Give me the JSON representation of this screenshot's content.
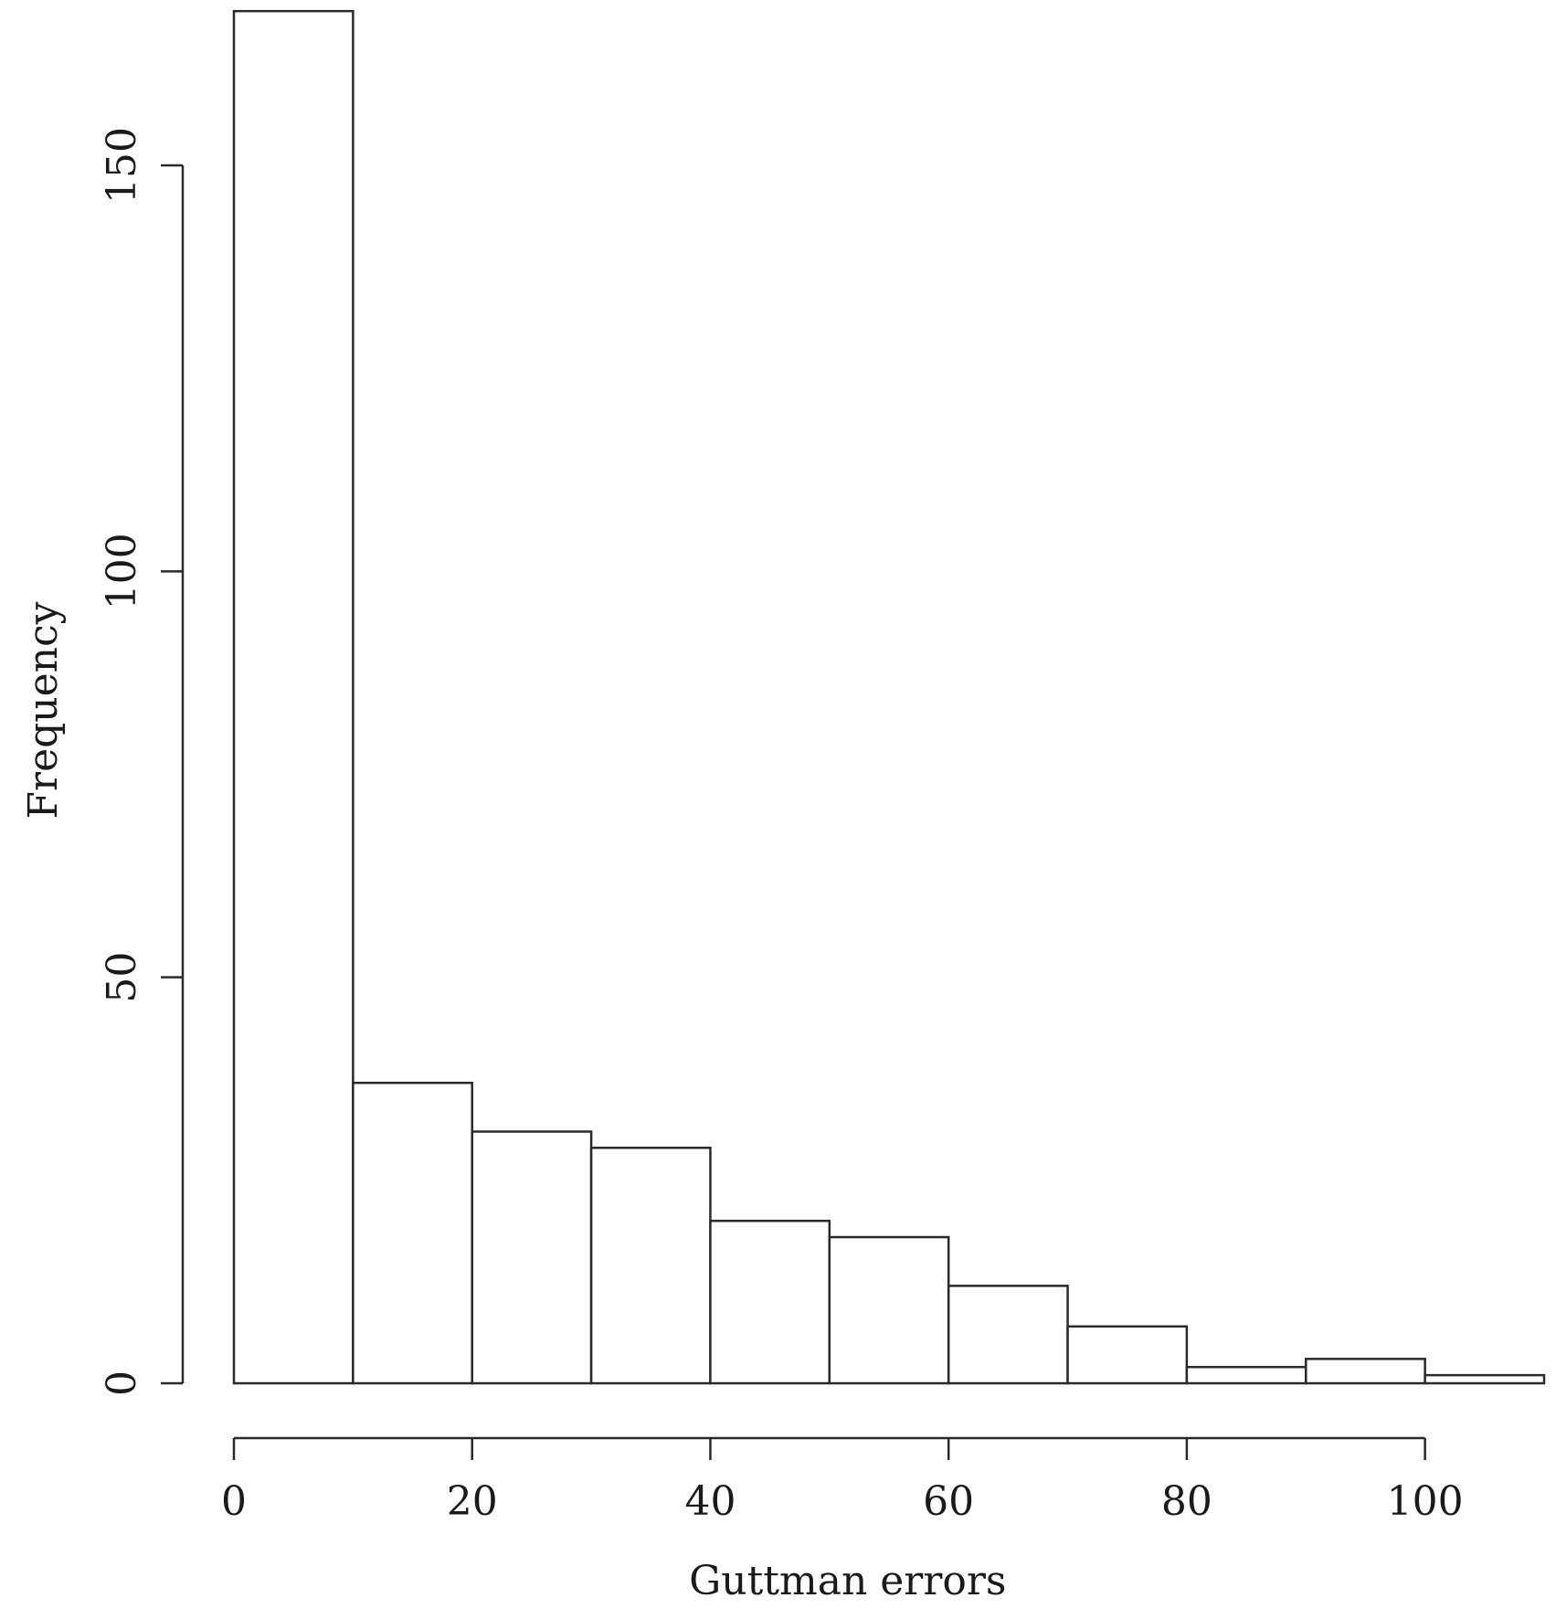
{
  "chart_data": {
    "type": "bar",
    "subtype": "histogram",
    "title": "",
    "xlabel": "Guttman errors",
    "ylabel": "Frequency",
    "bins": [
      {
        "start": 0,
        "end": 10,
        "value": 169
      },
      {
        "start": 10,
        "end": 20,
        "value": 37
      },
      {
        "start": 20,
        "end": 30,
        "value": 31
      },
      {
        "start": 30,
        "end": 40,
        "value": 29
      },
      {
        "start": 40,
        "end": 50,
        "value": 20
      },
      {
        "start": 50,
        "end": 60,
        "value": 18
      },
      {
        "start": 60,
        "end": 70,
        "value": 12
      },
      {
        "start": 70,
        "end": 80,
        "value": 7
      },
      {
        "start": 80,
        "end": 90,
        "value": 2
      },
      {
        "start": 90,
        "end": 100,
        "value": 3
      },
      {
        "start": 100,
        "end": 110,
        "value": 1
      }
    ],
    "xlim": [
      0,
      110
    ],
    "ylim": [
      0,
      169
    ],
    "x_ticks": [
      0,
      20,
      40,
      60,
      80,
      100
    ],
    "x_tick_labels": [
      "0",
      "20",
      "40",
      "60",
      "80",
      "100"
    ],
    "y_ticks": [
      0,
      50,
      100,
      150
    ],
    "y_tick_labels": [
      "0",
      "50",
      "100",
      "150"
    ],
    "grid": false,
    "legend": "none",
    "bar_fill": "#ffffff",
    "bar_stroke": "#2a2a2a"
  }
}
